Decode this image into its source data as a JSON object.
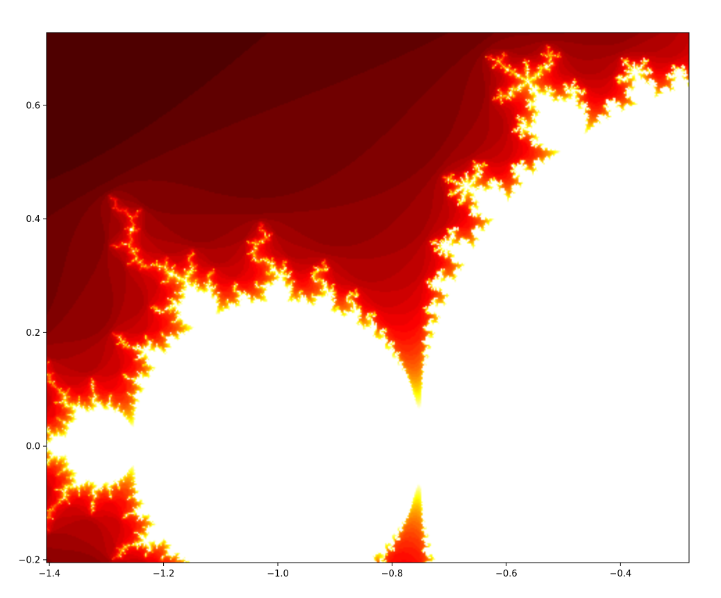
{
  "chart_data": {
    "type": "heatmap",
    "title": "",
    "xlabel": "",
    "ylabel": "",
    "xlim": [
      -1.405,
      -0.28
    ],
    "ylim": [
      -0.205,
      0.728
    ],
    "x_ticks": [
      {
        "value": -1.4,
        "label": "−1.4"
      },
      {
        "value": -1.2,
        "label": "−1.2"
      },
      {
        "value": -1.0,
        "label": "−1.0"
      },
      {
        "value": -0.8,
        "label": "−0.8"
      },
      {
        "value": -0.6,
        "label": "−0.6"
      },
      {
        "value": -0.4,
        "label": "−0.4"
      }
    ],
    "y_ticks": [
      {
        "value": -0.2,
        "label": "−0.2"
      },
      {
        "value": 0.0,
        "label": "0.0"
      },
      {
        "value": 0.2,
        "label": "0.2"
      },
      {
        "value": 0.4,
        "label": "0.4"
      },
      {
        "value": 0.6,
        "label": "0.6"
      }
    ],
    "colormap": "hot",
    "grid": false,
    "legend": "none",
    "interior_color": "#ffffff"
  }
}
